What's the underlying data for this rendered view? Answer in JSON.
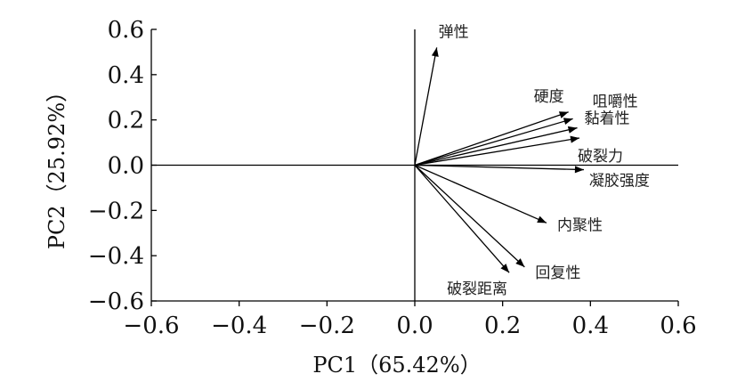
{
  "chart_data": {
    "type": "scatter",
    "subtype": "pca-biplot-loadings",
    "title": "",
    "xlabel": "PC1（65.42%）",
    "ylabel": "PC2（25.92%）",
    "xlim": [
      -0.6,
      0.6
    ],
    "ylim": [
      -0.6,
      0.6
    ],
    "xticks": [
      -0.6,
      -0.4,
      -0.2,
      0.0,
      0.2,
      0.4,
      0.6
    ],
    "yticks": [
      0.6,
      0.4,
      0.2,
      0.0,
      -0.2,
      -0.4,
      -0.6
    ],
    "xtick_labels": [
      "−0.6",
      "−0.4",
      "−0.2",
      "0.0",
      "0.2",
      "0.4",
      "0.6"
    ],
    "ytick_labels": [
      "0.6",
      "0.4",
      "0.2",
      "0.0",
      "−0.2",
      "−0.4",
      "−0.6"
    ],
    "grid": false,
    "legend": "none",
    "vectors": [
      {
        "name": "弹性",
        "x": 0.05,
        "y": 0.52
      },
      {
        "name": "硬度",
        "x": 0.35,
        "y": 0.235
      },
      {
        "name": "咀嚼性",
        "x": 0.36,
        "y": 0.205
      },
      {
        "name": "黏着性",
        "x": 0.37,
        "y": 0.165
      },
      {
        "name": "破裂力",
        "x": 0.375,
        "y": 0.12
      },
      {
        "name": "凝胶强度",
        "x": 0.385,
        "y": -0.02
      },
      {
        "name": "内聚性",
        "x": 0.3,
        "y": -0.255
      },
      {
        "name": "回复性",
        "x": 0.25,
        "y": -0.45
      },
      {
        "name": "破裂距离",
        "x": 0.215,
        "y": -0.475
      }
    ]
  }
}
